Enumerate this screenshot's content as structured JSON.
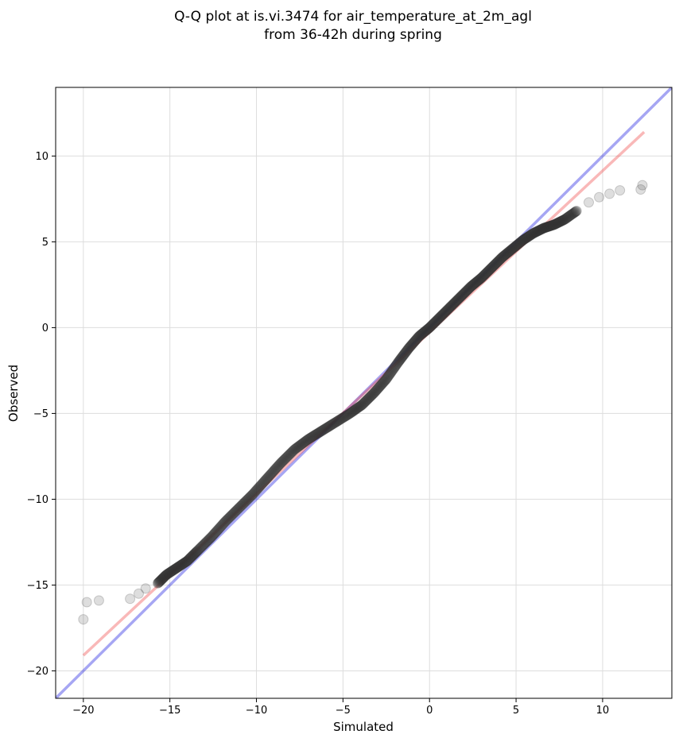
{
  "chart_data": {
    "type": "scatter",
    "title": [
      "Q-Q plot at is.vi.3474 for air_temperature_at_2m_agl",
      "from 36-42h during spring"
    ],
    "xlabel": "Simulated",
    "ylabel": "Observed",
    "xlim": [
      -21.6,
      14.0
    ],
    "ylim": [
      -21.6,
      14.0
    ],
    "xticks": [
      -20,
      -15,
      -10,
      -5,
      0,
      5,
      10
    ],
    "yticks": [
      -20,
      -15,
      -10,
      -5,
      0,
      5,
      10
    ],
    "grid": true,
    "colors": {
      "points": "#333333",
      "identity_line": "#0000dd",
      "fit_line": "#ee3333",
      "grid": "#dddddd"
    },
    "reference_lines": [
      {
        "type": "identity",
        "color": "#0000dd",
        "x": [
          -21.6,
          14.0
        ],
        "y": [
          -21.6,
          14.0
        ]
      },
      {
        "type": "fit",
        "color": "#ee3333",
        "x": [
          -20.0,
          12.4
        ],
        "y": [
          -19.1,
          11.4
        ]
      }
    ],
    "quantile_curve": [
      [
        -20.0,
        -17.0
      ],
      [
        -19.8,
        -16.0
      ],
      [
        -19.1,
        -15.9
      ],
      [
        -17.3,
        -15.8
      ],
      [
        -16.8,
        -15.5
      ],
      [
        -16.4,
        -15.2
      ],
      [
        -15.7,
        -14.9
      ],
      [
        -15.2,
        -14.4
      ],
      [
        -14.6,
        -14.0
      ],
      [
        -14.0,
        -13.6
      ],
      [
        -13.4,
        -13.0
      ],
      [
        -12.6,
        -12.2
      ],
      [
        -11.8,
        -11.3
      ],
      [
        -11.0,
        -10.5
      ],
      [
        -10.2,
        -9.7
      ],
      [
        -9.4,
        -8.8
      ],
      [
        -8.6,
        -7.9
      ],
      [
        -7.8,
        -7.1
      ],
      [
        -7.0,
        -6.5
      ],
      [
        -6.2,
        -6.0
      ],
      [
        -5.4,
        -5.5
      ],
      [
        -4.6,
        -5.0
      ],
      [
        -3.9,
        -4.5
      ],
      [
        -3.2,
        -3.8
      ],
      [
        -2.5,
        -3.0
      ],
      [
        -1.8,
        -2.0
      ],
      [
        -1.2,
        -1.2
      ],
      [
        -0.6,
        -0.5
      ],
      [
        0.0,
        0.0
      ],
      [
        0.6,
        0.6
      ],
      [
        1.2,
        1.2
      ],
      [
        1.8,
        1.8
      ],
      [
        2.4,
        2.4
      ],
      [
        3.0,
        2.9
      ],
      [
        3.6,
        3.5
      ],
      [
        4.2,
        4.1
      ],
      [
        4.8,
        4.6
      ],
      [
        5.4,
        5.1
      ],
      [
        6.0,
        5.5
      ],
      [
        6.6,
        5.8
      ],
      [
        7.2,
        6.0
      ],
      [
        7.8,
        6.3
      ],
      [
        8.5,
        6.8
      ],
      [
        9.2,
        7.3
      ],
      [
        9.8,
        7.6
      ],
      [
        10.4,
        7.8
      ],
      [
        11.0,
        8.0
      ],
      [
        12.2,
        8.05
      ],
      [
        12.3,
        8.3
      ]
    ]
  }
}
